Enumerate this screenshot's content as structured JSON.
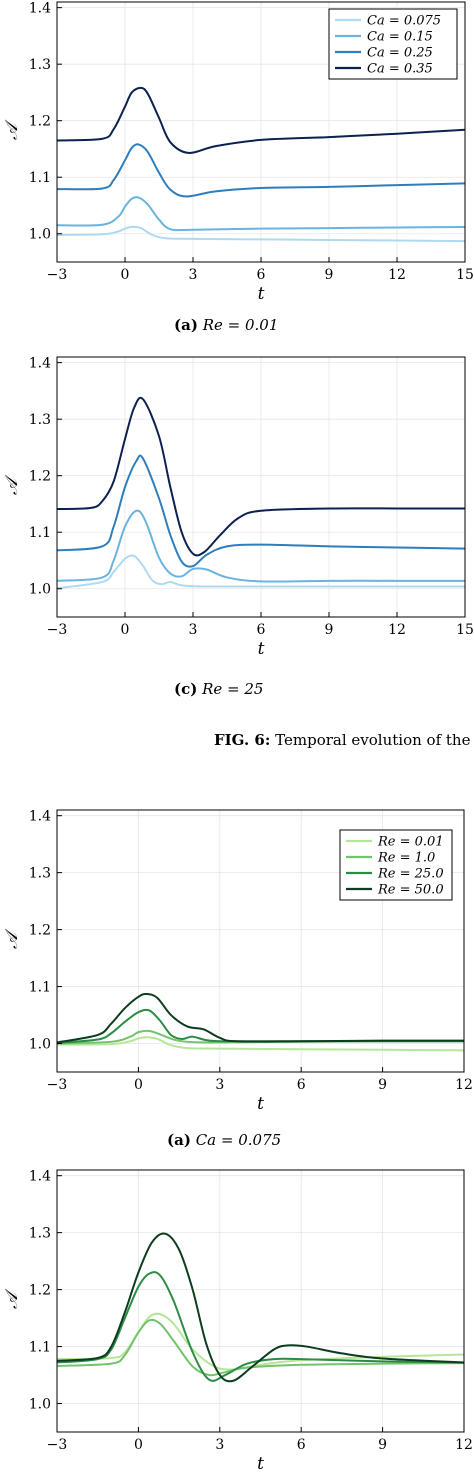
{
  "figure_caption": {
    "label": "FIG. 6:",
    "text": "Temporal evolution of the"
  },
  "chart_data": [
    {
      "type": "line",
      "caption_label": "(a)",
      "caption_text": "Re = 0.01",
      "xlabel": "t",
      "ylabel": "𝒜",
      "xlim": [
        -3,
        15
      ],
      "ylim": [
        0.95,
        1.41
      ],
      "xticks": [
        -3,
        0,
        3,
        6,
        9,
        12,
        15
      ],
      "xtick_labels": [
        "−3",
        "0",
        "3",
        "6",
        "9",
        "12",
        "15"
      ],
      "yticks": [
        1.0,
        1.1,
        1.2,
        1.3,
        1.4
      ],
      "ytick_labels": [
        "1.0",
        "1.1",
        "1.2",
        "1.3",
        "1.4"
      ],
      "grid": true,
      "legend_position": "top-right",
      "series": [
        {
          "name": "Ca = 0.075",
          "color": "#aedaf0",
          "x": [
            -3,
            -1,
            -0.3,
            0,
            0.3,
            0.7,
            1.2,
            1.8,
            3,
            6,
            9,
            12,
            15
          ],
          "y": [
            0.998,
            0.999,
            1.004,
            1.009,
            1.012,
            1.01,
            0.998,
            0.992,
            0.991,
            0.99,
            0.989,
            0.988,
            0.987
          ]
        },
        {
          "name": "Ca = 0.15",
          "color": "#6bb3de",
          "x": [
            -3,
            -1,
            -0.3,
            0,
            0.3,
            0.6,
            1.0,
            1.5,
            2.0,
            3,
            6,
            9,
            12,
            15
          ],
          "y": [
            1.015,
            1.016,
            1.03,
            1.048,
            1.062,
            1.064,
            1.052,
            1.025,
            1.008,
            1.007,
            1.009,
            1.01,
            1.011,
            1.012
          ]
        },
        {
          "name": "Ca = 0.25",
          "color": "#2e7ebc",
          "x": [
            -3,
            -1,
            -0.5,
            0,
            0.3,
            0.6,
            1.0,
            1.5,
            2.0,
            2.7,
            4,
            6,
            9,
            12,
            15
          ],
          "y": [
            1.079,
            1.08,
            1.095,
            1.13,
            1.152,
            1.158,
            1.145,
            1.108,
            1.078,
            1.066,
            1.075,
            1.081,
            1.083,
            1.086,
            1.089
          ]
        },
        {
          "name": "Ca = 0.35",
          "color": "#0d2150",
          "x": [
            -3,
            -1,
            -0.5,
            0,
            0.3,
            0.7,
            1.0,
            1.5,
            2.0,
            2.8,
            4,
            6,
            9,
            12,
            15
          ],
          "y": [
            1.165,
            1.168,
            1.185,
            1.225,
            1.25,
            1.258,
            1.248,
            1.205,
            1.162,
            1.143,
            1.155,
            1.166,
            1.171,
            1.177,
            1.184
          ]
        }
      ]
    },
    {
      "type": "line",
      "caption_label": "(c)",
      "caption_text": "Re = 25",
      "xlabel": "t",
      "ylabel": "𝒜",
      "xlim": [
        -3,
        15
      ],
      "ylim": [
        0.95,
        1.41
      ],
      "xticks": [
        -3,
        0,
        3,
        6,
        9,
        12,
        15
      ],
      "xtick_labels": [
        "−3",
        "0",
        "3",
        "6",
        "9",
        "12",
        "15"
      ],
      "yticks": [
        1.0,
        1.1,
        1.2,
        1.3,
        1.4
      ],
      "ytick_labels": [
        "1.0",
        "1.1",
        "1.2",
        "1.3",
        "1.4"
      ],
      "grid": true,
      "legend_position": "none",
      "series": [
        {
          "name": "",
          "color": "#aedaf0",
          "x": [
            -3,
            -1,
            -0.5,
            0,
            0.4,
            0.8,
            1.2,
            1.6,
            2.0,
            2.5,
            3.5,
            6,
            9,
            12,
            15
          ],
          "y": [
            1.001,
            1.012,
            1.03,
            1.053,
            1.058,
            1.04,
            1.015,
            1.008,
            1.012,
            1.006,
            1.004,
            1.004,
            1.004,
            1.004,
            1.004
          ]
        },
        {
          "name": "",
          "color": "#6bb3de",
          "x": [
            -3,
            -1,
            -0.5,
            0,
            0.5,
            0.9,
            1.5,
            2.0,
            2.5,
            3.0,
            3.6,
            4.5,
            6,
            9,
            12,
            15
          ],
          "y": [
            1.014,
            1.02,
            1.05,
            1.11,
            1.138,
            1.12,
            1.055,
            1.027,
            1.022,
            1.035,
            1.034,
            1.02,
            1.013,
            1.014,
            1.014,
            1.014
          ]
        },
        {
          "name": "",
          "color": "#2e7ebc",
          "x": [
            -3,
            -1,
            -0.5,
            0,
            0.5,
            0.8,
            1.5,
            2.0,
            2.5,
            3.0,
            3.6,
            4.5,
            6,
            9,
            12,
            15
          ],
          "y": [
            1.068,
            1.075,
            1.11,
            1.18,
            1.226,
            1.23,
            1.16,
            1.095,
            1.048,
            1.04,
            1.06,
            1.075,
            1.078,
            1.075,
            1.073,
            1.071
          ]
        },
        {
          "name": "",
          "color": "#0d2150",
          "x": [
            -3,
            -1.5,
            -1,
            -0.5,
            0,
            0.4,
            0.8,
            1.5,
            2.0,
            2.5,
            3.0,
            3.5,
            4.2,
            5.0,
            6,
            9,
            12,
            15
          ],
          "y": [
            1.141,
            1.143,
            1.155,
            1.19,
            1.265,
            1.32,
            1.335,
            1.27,
            1.18,
            1.1,
            1.062,
            1.065,
            1.095,
            1.125,
            1.138,
            1.142,
            1.142,
            1.142
          ]
        }
      ]
    },
    {
      "type": "line",
      "caption_label": "(a)",
      "caption_text": "Ca = 0.075",
      "xlabel": "t",
      "ylabel": "𝒜",
      "xlim": [
        -3,
        12
      ],
      "ylim": [
        0.95,
        1.41
      ],
      "xticks": [
        -3,
        0,
        3,
        6,
        9,
        12
      ],
      "xtick_labels": [
        "−3",
        "0",
        "3",
        "6",
        "9",
        "12"
      ],
      "yticks": [
        1.0,
        1.1,
        1.2,
        1.3,
        1.4
      ],
      "ytick_labels": [
        "1.0",
        "1.1",
        "1.2",
        "1.3",
        "1.4"
      ],
      "grid": true,
      "legend_position": "top-right",
      "series": [
        {
          "name": "Re = 0.01",
          "color": "#b7e59a",
          "x": [
            -3,
            -1,
            -0.3,
            0,
            0.3,
            0.7,
            1.2,
            1.8,
            3,
            6,
            9,
            12
          ],
          "y": [
            0.998,
            0.999,
            1.004,
            1.009,
            1.011,
            1.008,
            0.997,
            0.992,
            0.991,
            0.99,
            0.989,
            0.988
          ]
        },
        {
          "name": "Re = 1.0",
          "color": "#72c36b",
          "x": [
            -3,
            -1,
            -0.3,
            0,
            0.4,
            0.8,
            1.3,
            1.8,
            2.5,
            3,
            6,
            9,
            12
          ],
          "y": [
            1.0,
            1.003,
            1.012,
            1.02,
            1.022,
            1.016,
            1.007,
            1.003,
            1.002,
            1.002,
            1.003,
            1.004,
            1.004
          ]
        },
        {
          "name": "Re = 25.0",
          "color": "#2d8b45",
          "x": [
            -3,
            -1.5,
            -1,
            -0.5,
            0,
            0.4,
            0.8,
            1.2,
            1.6,
            2.0,
            2.5,
            3.2,
            6,
            9,
            12
          ],
          "y": [
            1.001,
            1.007,
            1.018,
            1.038,
            1.055,
            1.058,
            1.04,
            1.015,
            1.008,
            1.012,
            1.006,
            1.004,
            1.004,
            1.004,
            1.004
          ]
        },
        {
          "name": "Re = 50.0",
          "color": "#0b3d1e",
          "x": [
            -3,
            -1.5,
            -1,
            -0.5,
            0,
            0.3,
            0.7,
            1.2,
            1.8,
            2.4,
            3.0,
            3.6,
            6,
            9,
            12
          ],
          "y": [
            1.002,
            1.015,
            1.035,
            1.062,
            1.082,
            1.087,
            1.08,
            1.05,
            1.03,
            1.025,
            1.01,
            1.004,
            1.004,
            1.005,
            1.005
          ]
        }
      ]
    },
    {
      "type": "line",
      "caption_label": "",
      "caption_text": "",
      "xlabel": "t",
      "ylabel": "𝒜",
      "xlim": [
        -3,
        12
      ],
      "ylim": [
        0.95,
        1.41
      ],
      "xticks": [
        -3,
        0,
        3,
        6,
        9,
        12
      ],
      "xtick_labels": [
        "−3",
        "0",
        "3",
        "6",
        "9",
        "12"
      ],
      "yticks": [
        1.0,
        1.1,
        1.2,
        1.3,
        1.4
      ],
      "ytick_labels": [
        "1.0",
        "1.1",
        "1.2",
        "1.3",
        "1.4"
      ],
      "grid": true,
      "legend_position": "none",
      "series": [
        {
          "name": "",
          "color": "#b7e59a",
          "x": [
            -3,
            -1,
            -0.5,
            0,
            0.4,
            0.8,
            1.3,
            2.0,
            2.8,
            3.5,
            4.5,
            6,
            9,
            12
          ],
          "y": [
            1.078,
            1.08,
            1.09,
            1.125,
            1.152,
            1.157,
            1.14,
            1.095,
            1.065,
            1.06,
            1.068,
            1.076,
            1.082,
            1.086
          ]
        },
        {
          "name": "",
          "color": "#72c36b",
          "x": [
            -3,
            -1,
            -0.5,
            0,
            0.4,
            0.8,
            1.3,
            2.0,
            2.6,
            3.2,
            4.0,
            6,
            9,
            12
          ],
          "y": [
            1.066,
            1.07,
            1.085,
            1.125,
            1.146,
            1.14,
            1.11,
            1.065,
            1.05,
            1.055,
            1.063,
            1.068,
            1.07,
            1.071
          ]
        },
        {
          "name": "",
          "color": "#2d8b45",
          "x": [
            -3,
            -1.5,
            -1,
            -0.5,
            0,
            0.4,
            0.8,
            1.3,
            2.0,
            2.6,
            3.2,
            4.0,
            5.0,
            6,
            9,
            12
          ],
          "y": [
            1.072,
            1.078,
            1.095,
            1.15,
            1.205,
            1.228,
            1.225,
            1.18,
            1.09,
            1.042,
            1.05,
            1.07,
            1.078,
            1.078,
            1.074,
            1.072
          ]
        },
        {
          "name": "",
          "color": "#0b3d1e",
          "x": [
            -3,
            -1.5,
            -1,
            -0.5,
            0,
            0.5,
            1.0,
            1.5,
            2.0,
            2.5,
            3.0,
            3.5,
            4.2,
            5.0,
            5.5,
            6.2,
            7.5,
            9,
            12
          ],
          "y": [
            1.075,
            1.08,
            1.1,
            1.16,
            1.23,
            1.283,
            1.298,
            1.27,
            1.2,
            1.105,
            1.05,
            1.04,
            1.065,
            1.095,
            1.102,
            1.1,
            1.088,
            1.079,
            1.072
          ]
        }
      ]
    }
  ]
}
